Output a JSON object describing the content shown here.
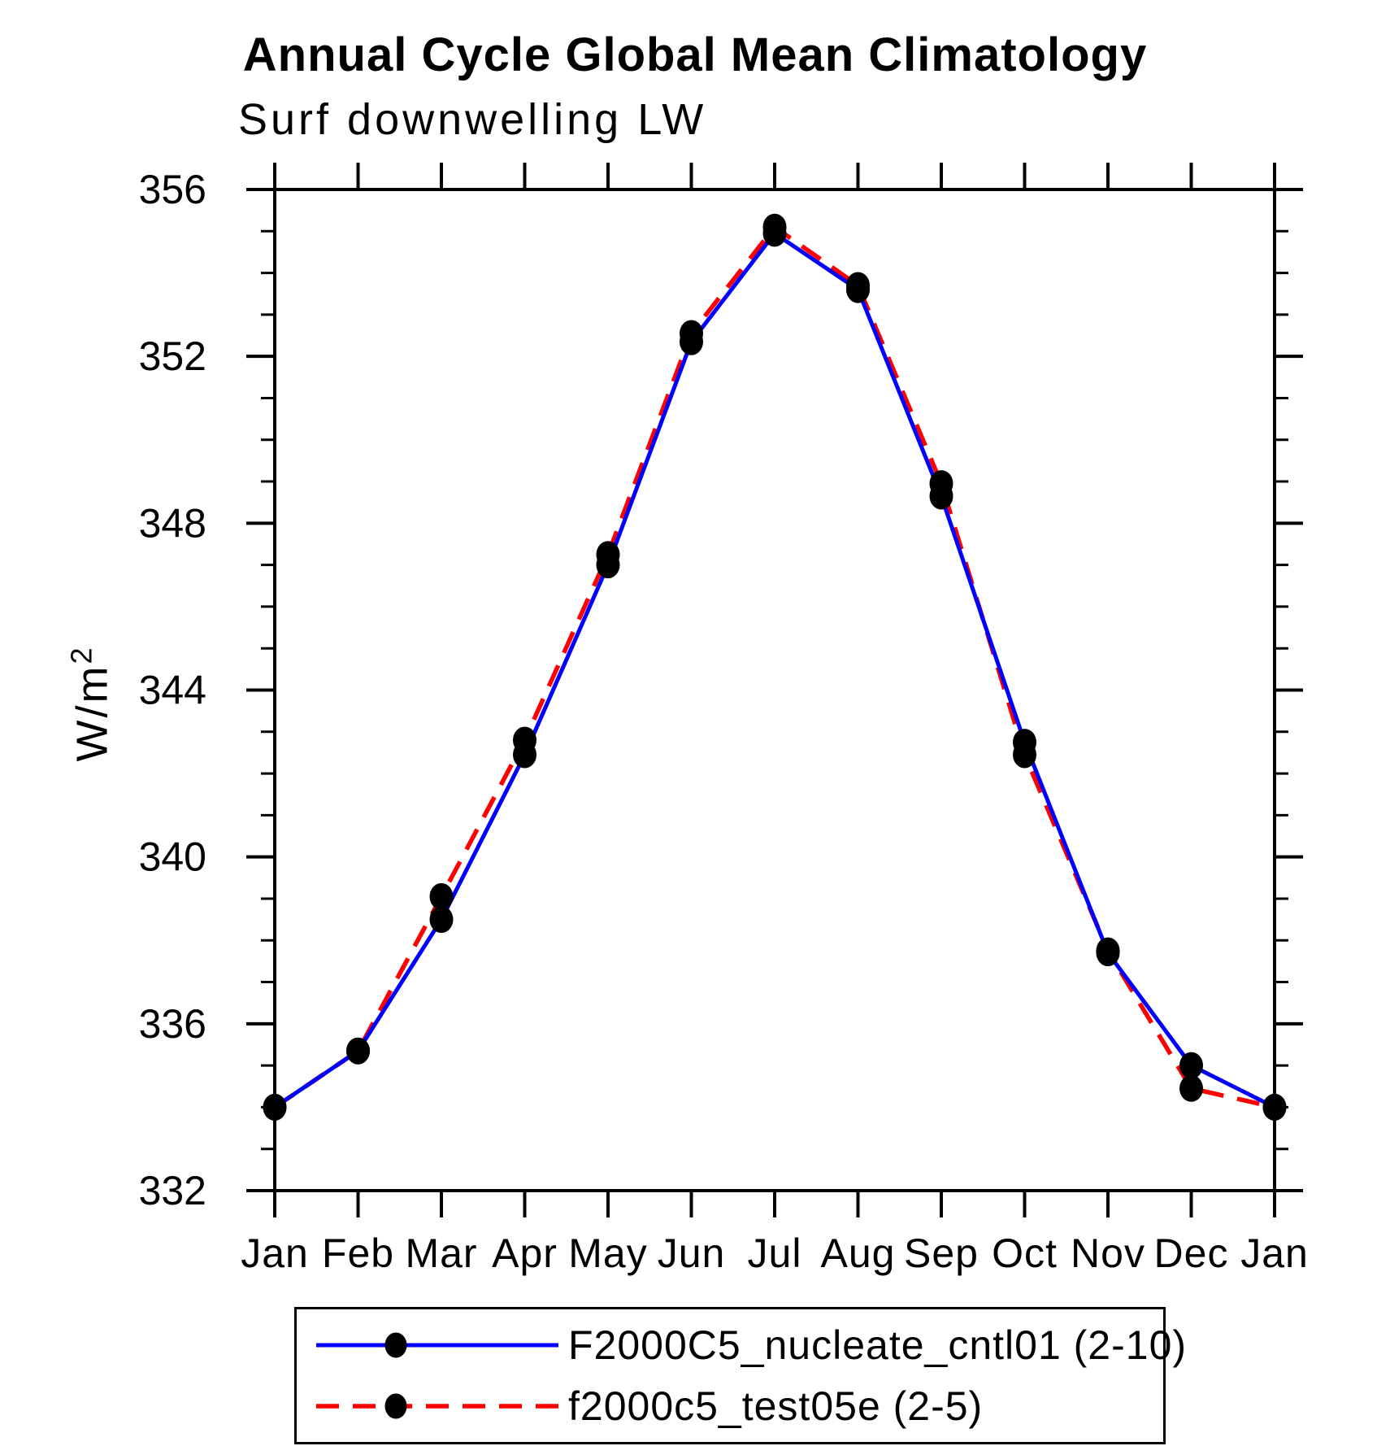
{
  "page": {
    "background": "#ffffff"
  },
  "chart_data": {
    "type": "line",
    "title": "Annual Cycle Global Mean Climatology",
    "subtitle": "Surf downwelling LW",
    "ylabel": "W/m²",
    "ylabel_base": "W/m",
    "ylabel_exponent": "2",
    "xlabel": "",
    "categories": [
      "Jan",
      "Feb",
      "Mar",
      "Apr",
      "May",
      "Jun",
      "Jul",
      "Aug",
      "Sep",
      "Oct",
      "Nov",
      "Dec",
      "Jan"
    ],
    "ylim": [
      332,
      356
    ],
    "y_major_step": 4,
    "y_minor_step": 1,
    "y_major_tick_labels": [
      "332",
      "336",
      "340",
      "344",
      "348",
      "352",
      "356"
    ],
    "grid": false,
    "legend_position": "bottom-left",
    "axis_color": "#000000",
    "marker_color": "#000000",
    "series": [
      {
        "name": "F2000C5_nucleate_cntl01 (2-10)",
        "color": "#0000ff",
        "line_style": "solid",
        "marker": "filled-circle",
        "values": [
          334.0,
          335.35,
          338.5,
          342.45,
          347.0,
          352.35,
          354.95,
          353.6,
          348.65,
          342.75,
          337.7,
          335.0,
          334.0
        ]
      },
      {
        "name": "f2000c5_test05e (2-5)",
        "color": "#ff0000",
        "line_style": "dashed",
        "marker": "filled-circle",
        "values": [
          334.0,
          335.35,
          339.05,
          342.8,
          347.25,
          352.55,
          355.1,
          353.7,
          348.95,
          342.45,
          337.75,
          334.45,
          334.0
        ]
      }
    ]
  }
}
